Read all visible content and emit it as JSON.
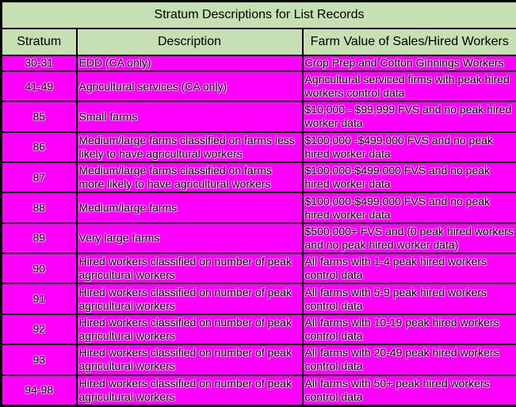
{
  "title": "Stratum Descriptions for List Records",
  "columns": [
    "Stratum",
    "Description",
    "Farm Value of Sales/Hired Workers"
  ],
  "rows": [
    {
      "stratum": "30-31",
      "description": "EDD (CA only)",
      "farm_value": "Crop Prep and Cotton Ginnings Workers"
    },
    {
      "stratum": "41-49",
      "description": "Agricultural services (CA only)",
      "farm_value": "Agricultural serviced firms with peak hired workers control data"
    },
    {
      "stratum": "85",
      "description": "Small farms",
      "farm_value": "$10,000 - $99,999 FVS and no peak hired worker data"
    },
    {
      "stratum": "86",
      "description": "Medium/large farms classified on farms less likely to have agricultural workers",
      "farm_value": "$100,000 -$499,000 FVS and no peak hired worker data"
    },
    {
      "stratum": "87",
      "description": "Medium/large farms classified on farms more likely to have agricultural workers",
      "farm_value": "$100,000-$499,000 FVS and no peak hired worker data"
    },
    {
      "stratum": "88",
      "description": "Medium/large farms",
      "farm_value": "$100,000-$499,000 FVS and no peak hired worker data"
    },
    {
      "stratum": "89",
      "description": "Very large farms",
      "farm_value": "$500,000+ FVS and (0 peak hired workers and no peak hired worker data)"
    },
    {
      "stratum": "90",
      "description": "Hired workers classified on number of peak agricultural workers",
      "farm_value": "All farms with 1-4 peak hired workers control data"
    },
    {
      "stratum": "91",
      "description": "Hired workers classified on number of peak agricultural workers",
      "farm_value": "All farms with 5-9 peak hired workers control data"
    },
    {
      "stratum": "92",
      "description": "Hired workers classified on number of peak agricultural workers",
      "farm_value": "All farms with 10-19 peak hired workers control data"
    },
    {
      "stratum": "93",
      "description": "Hired workers classified on number of peak agricultural workers",
      "farm_value": "All farms with 20-49 peak hired workers control data"
    },
    {
      "stratum": "94-98",
      "description": "Hired workers classified on number of peak agricultural workers",
      "farm_value": "All farms with 50+ peak hired workers control data"
    }
  ],
  "colors": {
    "header_bg": "#c6dfb3",
    "body_bg": "#ff00ff",
    "border": "#000000",
    "text": "#000000"
  }
}
